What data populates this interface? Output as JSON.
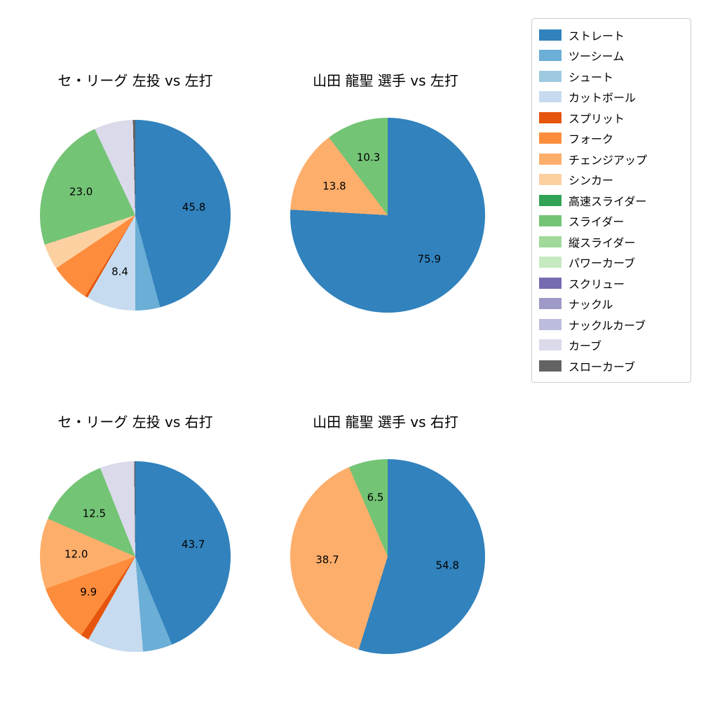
{
  "figure": {
    "background": "#ffffff",
    "text_color": "#000000"
  },
  "legend": {
    "position": "right",
    "border_color": "#cccccc",
    "items": [
      {
        "label": "ストレート",
        "color": "#3182bd"
      },
      {
        "label": "ツーシーム",
        "color": "#6baed6"
      },
      {
        "label": "シュート",
        "color": "#9ecae1"
      },
      {
        "label": "カットボール",
        "color": "#c6dbef"
      },
      {
        "label": "スプリット",
        "color": "#e6550d"
      },
      {
        "label": "フォーク",
        "color": "#fd8d3c"
      },
      {
        "label": "チェンジアップ",
        "color": "#fdae6b"
      },
      {
        "label": "シンカー",
        "color": "#fdd0a2"
      },
      {
        "label": "高速スライダー",
        "color": "#31a354"
      },
      {
        "label": "スライダー",
        "color": "#74c476"
      },
      {
        "label": "縦スライダー",
        "color": "#a1d99b"
      },
      {
        "label": "パワーカーブ",
        "color": "#c7e9c0"
      },
      {
        "label": "スクリュー",
        "color": "#756bb1"
      },
      {
        "label": "ナックル",
        "color": "#9e9ac8"
      },
      {
        "label": "ナックルカーブ",
        "color": "#bcbddc"
      },
      {
        "label": "カーブ",
        "color": "#dadaeb"
      },
      {
        "label": "スローカーブ",
        "color": "#636363"
      }
    ]
  },
  "chart_data": [
    {
      "type": "pie",
      "title": "セ・リーグ 左投 vs 左打",
      "start_angle": "top",
      "direction": "clockwise",
      "slices": [
        {
          "name": "ストレート",
          "value": 45.8,
          "label": "45.8"
        },
        {
          "name": "ツーシーム",
          "value": 4.2
        },
        {
          "name": "カットボール",
          "value": 8.4,
          "label": "8.4"
        },
        {
          "name": "スプリット",
          "value": 0.4
        },
        {
          "name": "フォーク",
          "value": 6.8
        },
        {
          "name": "シンカー",
          "value": 4.4
        },
        {
          "name": "スライダー",
          "value": 23.0,
          "label": "23.0"
        },
        {
          "name": "カーブ",
          "value": 6.6
        },
        {
          "name": "スローカーブ",
          "value": 0.4
        }
      ]
    },
    {
      "type": "pie",
      "title": "山田 龍聖 選手 vs 左打",
      "start_angle": "top",
      "direction": "clockwise",
      "slices": [
        {
          "name": "ストレート",
          "value": 75.9,
          "label": "75.9"
        },
        {
          "name": "チェンジアップ",
          "value": 13.8,
          "label": "13.8"
        },
        {
          "name": "スライダー",
          "value": 10.3,
          "label": "10.3"
        }
      ]
    },
    {
      "type": "pie",
      "title": "セ・リーグ 左投 vs 右打",
      "start_angle": "top",
      "direction": "clockwise",
      "slices": [
        {
          "name": "ストレート",
          "value": 43.7,
          "label": "43.7"
        },
        {
          "name": "ツーシーム",
          "value": 5.0
        },
        {
          "name": "カットボール",
          "value": 9.5
        },
        {
          "name": "スプリット",
          "value": 1.4
        },
        {
          "name": "フォーク",
          "value": 9.9,
          "label": "9.9"
        },
        {
          "name": "チェンジアップ",
          "value": 12.0,
          "label": "12.0"
        },
        {
          "name": "スライダー",
          "value": 12.5,
          "label": "12.5"
        },
        {
          "name": "カーブ",
          "value": 5.8
        },
        {
          "name": "スローカーブ",
          "value": 0.2
        }
      ]
    },
    {
      "type": "pie",
      "title": "山田 龍聖 選手 vs 右打",
      "start_angle": "top",
      "direction": "clockwise",
      "slices": [
        {
          "name": "ストレート",
          "value": 54.8,
          "label": "54.8"
        },
        {
          "name": "チェンジアップ",
          "value": 38.7,
          "label": "38.7"
        },
        {
          "name": "スライダー",
          "value": 6.5,
          "label": "6.5"
        }
      ]
    }
  ]
}
